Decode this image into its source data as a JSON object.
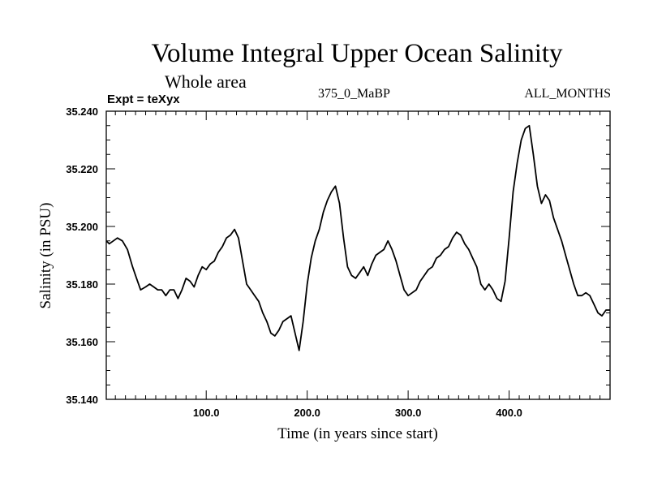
{
  "header": {
    "title": "Volume Integral Upper Ocean Salinity",
    "subtitle": "Whole area",
    "left_label": "Expt = teXyx",
    "center_label": "375_0_MaBP",
    "right_label": "ALL_MONTHS"
  },
  "chart_data": {
    "type": "line",
    "title": "Volume Integral Upper Ocean Salinity",
    "subtitle": "Whole area",
    "xlabel": "Time (in years since start)",
    "ylabel": "Salinity (in PSU)",
    "xlim": [
      1,
      500
    ],
    "ylim": [
      35.14,
      35.24
    ],
    "x_ticks": [
      100,
      200,
      300,
      400
    ],
    "x_tick_labels": [
      "100.0",
      "200.0",
      "300.0",
      "400.0"
    ],
    "y_ticks": [
      35.14,
      35.16,
      35.18,
      35.2,
      35.22,
      35.24
    ],
    "y_tick_labels": [
      "35.140",
      "35.160",
      "35.180",
      "35.200",
      "35.220",
      "35.240"
    ],
    "grid": false,
    "line_color": "#000000",
    "series": [
      {
        "x": [
          1,
          4,
          8,
          12,
          17,
          22,
          27,
          31,
          35,
          40,
          44,
          48,
          52,
          56,
          60,
          64,
          68,
          72,
          76,
          80,
          84,
          88,
          92,
          96,
          100,
          104,
          108,
          112,
          116,
          120,
          124,
          128,
          132,
          136,
          140,
          144,
          148,
          152,
          156,
          160,
          164,
          168,
          172,
          176,
          180,
          184,
          188,
          192,
          196,
          200,
          204,
          208,
          212,
          216,
          220,
          224,
          228,
          232,
          236,
          240,
          244,
          248,
          252,
          256,
          260,
          264,
          268,
          272,
          276,
          280,
          284,
          288,
          292,
          296,
          300,
          304,
          308,
          312,
          316,
          320,
          324,
          328,
          332,
          336,
          340,
          344,
          348,
          352,
          356,
          360,
          364,
          368,
          372,
          376,
          380,
          384,
          388,
          392,
          396,
          400,
          404,
          408,
          412,
          416,
          420,
          424,
          428,
          432,
          436,
          440,
          444,
          448,
          452,
          456,
          460,
          464,
          468,
          472,
          476,
          480,
          484,
          488,
          492,
          496,
          500
        ],
        "values": [
          35.195,
          35.194,
          35.195,
          35.196,
          35.195,
          35.192,
          35.186,
          35.182,
          35.178,
          35.179,
          35.18,
          35.179,
          35.178,
          35.178,
          35.176,
          35.178,
          35.178,
          35.175,
          35.178,
          35.182,
          35.181,
          35.179,
          35.183,
          35.186,
          35.185,
          35.187,
          35.188,
          35.191,
          35.193,
          35.196,
          35.197,
          35.199,
          35.196,
          35.188,
          35.18,
          35.178,
          35.176,
          35.174,
          35.17,
          35.167,
          35.163,
          35.162,
          35.164,
          35.167,
          35.168,
          35.169,
          35.163,
          35.157,
          35.167,
          35.18,
          35.189,
          35.195,
          35.199,
          35.205,
          35.209,
          35.212,
          35.214,
          35.208,
          35.196,
          35.186,
          35.183,
          35.182,
          35.184,
          35.186,
          35.183,
          35.187,
          35.19,
          35.191,
          35.192,
          35.195,
          35.192,
          35.188,
          35.183,
          35.178,
          35.176,
          35.177,
          35.178,
          35.181,
          35.183,
          35.185,
          35.186,
          35.189,
          35.19,
          35.192,
          35.193,
          35.196,
          35.198,
          35.197,
          35.194,
          35.192,
          35.189,
          35.186,
          35.18,
          35.178,
          35.18,
          35.178,
          35.175,
          35.174,
          35.181,
          35.196,
          35.212,
          35.222,
          35.23,
          35.234,
          35.235,
          35.225,
          35.214,
          35.208,
          35.211,
          35.209,
          35.203,
          35.199,
          35.195,
          35.19,
          35.185,
          35.18,
          35.176,
          35.176,
          35.177,
          35.176,
          35.173,
          35.17,
          35.169,
          35.171,
          35.171
        ]
      }
    ]
  }
}
